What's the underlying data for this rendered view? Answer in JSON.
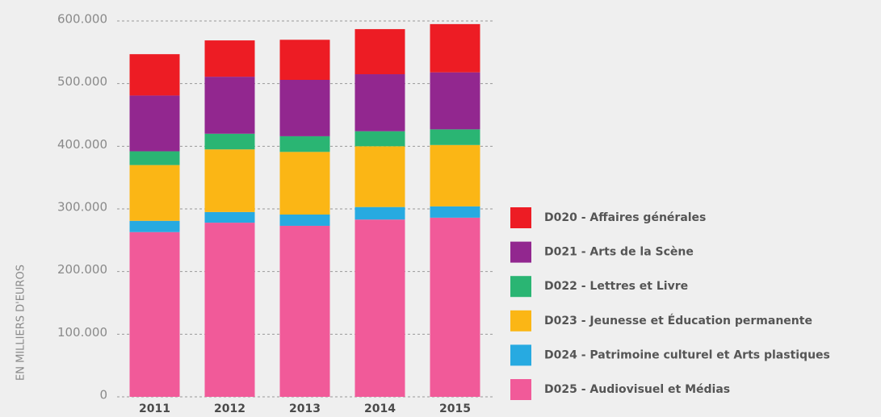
{
  "chart_data": {
    "type": "stacked_bar",
    "y_axis_label": "EN MILLIERS D'EUROS",
    "categories": [
      "2011",
      "2012",
      "2013",
      "2014",
      "2015"
    ],
    "series": [
      {
        "name": "D025 - Audiovisuel et Médias",
        "color": "#f15a99",
        "values": [
          263000,
          278000,
          273000,
          283000,
          286000
        ]
      },
      {
        "name": "D024 - Patrimoine culturel et Arts plastiques",
        "color": "#27aae1",
        "values": [
          18000,
          17000,
          18000,
          20000,
          18000
        ]
      },
      {
        "name": "D023 - Jeunesse et Éducation permanente",
        "color": "#fbb615",
        "values": [
          89000,
          100000,
          100000,
          97000,
          98000
        ]
      },
      {
        "name": "D022 - Lettres et Livre",
        "color": "#2ab573",
        "values": [
          22000,
          25000,
          25000,
          24000,
          25000
        ]
      },
      {
        "name": "D021 - Arts de la Scène",
        "color": "#92278f",
        "values": [
          89000,
          91000,
          90000,
          91000,
          91000
        ]
      },
      {
        "name": "D020 - Affaires générales",
        "color": "#ed1c24",
        "values": [
          66000,
          58000,
          64000,
          72000,
          77000
        ]
      }
    ],
    "ylim": [
      0,
      600000
    ],
    "yticks": [
      0,
      {
        "value": 100000,
        "label": "100.000"
      },
      {
        "value": 200000,
        "label": "200.000"
      },
      {
        "value": 300000,
        "label": "300.000"
      },
      {
        "value": 400000,
        "label": "400.000"
      },
      {
        "value": 500000,
        "label": "500.000"
      },
      {
        "value": 600000,
        "label": "600.000"
      }
    ],
    "grid": true
  }
}
